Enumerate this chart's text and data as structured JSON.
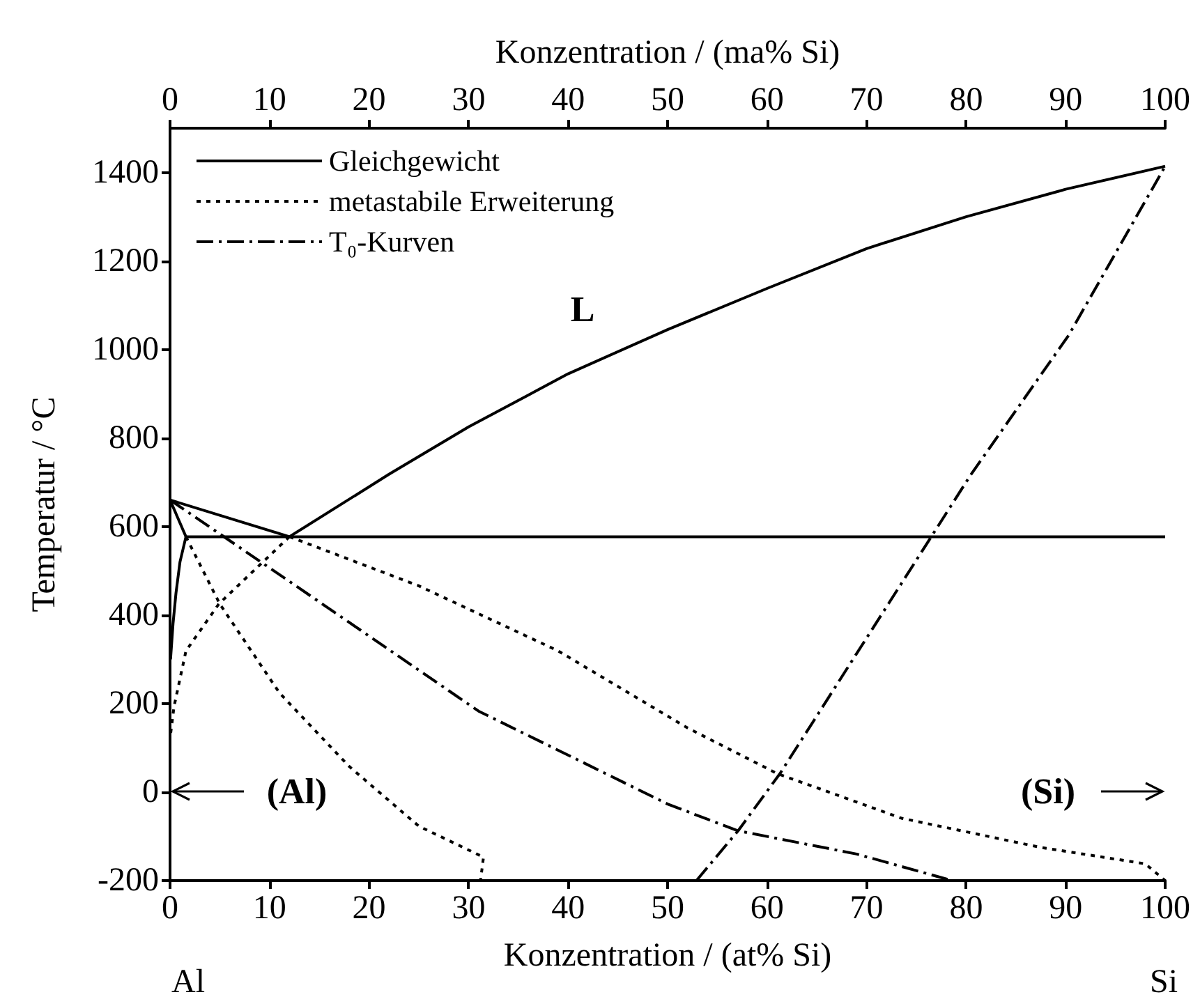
{
  "chart_data": {
    "type": "line",
    "xlabel": "Konzentration / (at% Si)",
    "x2label": "Konzentration / (ma% Si)",
    "ylabel": "Temperatur / °C",
    "xlim": [
      0,
      100
    ],
    "xticks": [
      0,
      10,
      20,
      30,
      40,
      50,
      60,
      70,
      80,
      90,
      100
    ],
    "x2lim": [
      0,
      100
    ],
    "x2ticks": [
      0,
      10,
      20,
      30,
      40,
      50,
      60,
      70,
      80,
      90,
      100
    ],
    "ylim": [
      -200,
      1500
    ],
    "yticks": [
      -200,
      0,
      200,
      400,
      600,
      800,
      1000,
      1200,
      1400
    ],
    "grid": false,
    "legend": "top left",
    "marker": "none",
    "series": [
      {
        "name": "Gleichgewicht",
        "color": "#000000",
        "line_style": "solid",
        "x": [
          12,
          22,
          30,
          40,
          50,
          60,
          70,
          80,
          90,
          100
        ],
        "values": [
          577,
          718,
          825,
          945,
          1045,
          1138,
          1228,
          1300,
          1362,
          1414
        ]
      },
      {
        "color": "#000000",
        "line_style": "solid",
        "x": [
          0,
          12
        ],
        "values": [
          660,
          577
        ]
      },
      {
        "color": "#000000",
        "line_style": "solid",
        "x": [
          0,
          1.6
        ],
        "values": [
          660,
          577
        ]
      },
      {
        "color": "#000000",
        "line_style": "solid",
        "x": [
          1.6,
          100
        ],
        "values": [
          577,
          577
        ]
      },
      {
        "color": "#000000",
        "line_style": "solid",
        "x": [
          1.6,
          1.0,
          0.6,
          0.3,
          0.05
        ],
        "values": [
          577,
          520,
          450,
          380,
          300
        ]
      },
      {
        "name": "metastabile Erweiterung",
        "color": "#000000",
        "line_style": "dotted",
        "x": [
          12,
          25,
          39,
          52,
          61,
          73.5,
          87.5,
          98,
          100
        ],
        "values": [
          577,
          466,
          319,
          145,
          42,
          -59,
          -125,
          -162,
          -200
        ]
      },
      {
        "color": "#000000",
        "line_style": "dotted",
        "x": [
          1.6,
          5,
          11,
          18,
          25,
          31.5,
          31.2
        ],
        "values": [
          577,
          425,
          224,
          58,
          -77,
          -147,
          -200
        ]
      },
      {
        "color": "#000000",
        "line_style": "dotted",
        "x": [
          12,
          4.9,
          1.6,
          0.4,
          0
        ],
        "values": [
          577,
          425,
          319,
          193,
          121
        ]
      },
      {
        "name": "T₀-Kurven",
        "color": "#000000",
        "line_style": "dashdot",
        "x": [
          0,
          12,
          31,
          50,
          57,
          69,
          78.6
        ],
        "values": [
          660,
          476,
          183,
          -27,
          -87,
          -140,
          -200
        ]
      },
      {
        "color": "#000000",
        "line_style": "dashdot",
        "x": [
          52.9,
          57.1,
          61.3,
          76.5,
          80.5,
          90.3,
          100
        ],
        "values": [
          -200,
          -87,
          42,
          577,
          718,
          1032,
          1414
        ]
      }
    ],
    "annotations": [
      "L",
      "(Al)",
      "(Si)",
      "Al",
      "Si"
    ]
  }
}
